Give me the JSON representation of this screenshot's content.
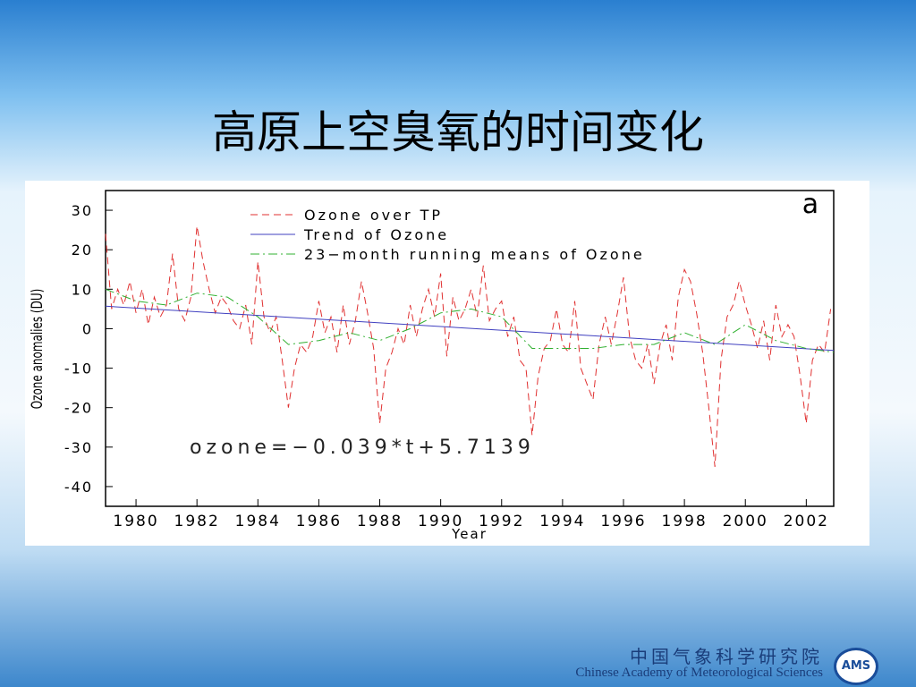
{
  "slide": {
    "title": "高原上空臭氧的时间变化",
    "footer_cn": "中国气象科学研究院",
    "footer_en": "Chinese Academy of Meteorological Sciences",
    "logo": "AMS"
  },
  "chart_data": {
    "type": "line",
    "panel_label": "a",
    "annotation": "ozone=−0.039*t+5.7139",
    "x_label": "Year",
    "y_label": "Ozone anomalies (DU)",
    "xlim": [
      1979.0,
      2002.9
    ],
    "xticks": [
      1980,
      1982,
      1984,
      1986,
      1988,
      1990,
      1992,
      1994,
      1996,
      1998,
      2000,
      2002
    ],
    "ylim": [
      -45,
      35
    ],
    "yticks": [
      -40,
      -30,
      -20,
      -10,
      0,
      10,
      20,
      30
    ],
    "series": [
      {
        "name": "Ozone over TP",
        "color": "#e03030",
        "dash": "8,5",
        "x": [
          1979,
          1979.2,
          1979.4,
          1979.6,
          1979.8,
          1980,
          1980.2,
          1980.4,
          1980.6,
          1980.8,
          1981,
          1981.2,
          1981.4,
          1981.6,
          1981.8,
          1982,
          1982.2,
          1982.4,
          1982.6,
          1982.8,
          1983,
          1983.2,
          1983.4,
          1983.6,
          1983.8,
          1984,
          1984.2,
          1984.4,
          1984.6,
          1984.8,
          1985,
          1985.2,
          1985.4,
          1985.6,
          1985.8,
          1986,
          1986.2,
          1986.4,
          1986.6,
          1986.8,
          1987,
          1987.2,
          1987.4,
          1987.6,
          1987.8,
          1988,
          1988.2,
          1988.4,
          1988.6,
          1988.8,
          1989,
          1989.2,
          1989.4,
          1989.6,
          1989.8,
          1990,
          1990.2,
          1990.4,
          1990.6,
          1990.8,
          1991,
          1991.2,
          1991.4,
          1991.6,
          1991.8,
          1992,
          1992.2,
          1992.4,
          1992.6,
          1992.8,
          1993,
          1993.2,
          1993.4,
          1993.6,
          1993.8,
          1994,
          1994.2,
          1994.4,
          1994.6,
          1994.8,
          1995,
          1995.2,
          1995.4,
          1995.6,
          1995.8,
          1996,
          1996.2,
          1996.4,
          1996.6,
          1996.8,
          1997,
          1997.2,
          1997.4,
          1997.6,
          1997.8,
          1998,
          1998.2,
          1998.4,
          1998.6,
          1998.8,
          1999,
          1999.2,
          1999.4,
          1999.6,
          1999.8,
          2000,
          2000.2,
          2000.4,
          2000.6,
          2000.8,
          2001,
          2001.2,
          2001.4,
          2001.6,
          2001.8,
          2002,
          2002.2,
          2002.4,
          2002.6,
          2002.8
        ],
        "values": [
          24,
          5,
          10,
          6,
          12,
          4,
          10,
          1,
          8,
          3,
          6,
          19,
          5,
          2,
          8,
          26,
          17,
          10,
          4,
          8,
          6,
          2,
          0,
          6,
          -4,
          17,
          3,
          -1,
          3,
          -8,
          -20,
          -10,
          -4,
          -6,
          -2,
          7,
          -1,
          3,
          -6,
          6,
          -4,
          2,
          12,
          4,
          -5,
          -24,
          -10,
          -6,
          0,
          -4,
          6,
          -2,
          5,
          10,
          3,
          14,
          -7,
          8,
          2,
          5,
          10,
          3,
          16,
          2,
          5,
          7,
          -2,
          3,
          -8,
          -10,
          -27,
          -12,
          -5,
          -3,
          5,
          -4,
          -6,
          7,
          -10,
          -14,
          -18,
          -4,
          3,
          -4,
          4,
          13,
          -2,
          -8,
          -10,
          -4,
          -14,
          -4,
          1,
          -8,
          8,
          15,
          12,
          4,
          -6,
          -20,
          -35,
          -8,
          3,
          6,
          12,
          6,
          1,
          -5,
          2,
          -8,
          6,
          -2,
          1,
          -2,
          -12,
          -24,
          -8,
          -4,
          -6,
          5
        ]
      },
      {
        "name": "Trend of Ozone",
        "color": "#4040c0",
        "dash": "none",
        "x": [
          1979.0,
          2002.9
        ],
        "values": [
          5.7,
          -5.5
        ]
      },
      {
        "name": "23−month running means of Ozone",
        "color": "#30b030",
        "dash": "10,4,2,4",
        "x": [
          1979,
          1980,
          1981,
          1982,
          1983,
          1984,
          1985,
          1986,
          1987,
          1988,
          1989,
          1990,
          1991,
          1992,
          1993,
          1994,
          1995,
          1996,
          1997,
          1998,
          1999,
          2000,
          2001,
          2002,
          2002.9
        ],
        "values": [
          10,
          7,
          6,
          9,
          8,
          3,
          -4,
          -3,
          -1,
          -3,
          0,
          4,
          5,
          3,
          -5,
          -5,
          -5,
          -4,
          -4,
          -1,
          -4,
          1,
          -3,
          -5,
          -6
        ]
      }
    ]
  }
}
